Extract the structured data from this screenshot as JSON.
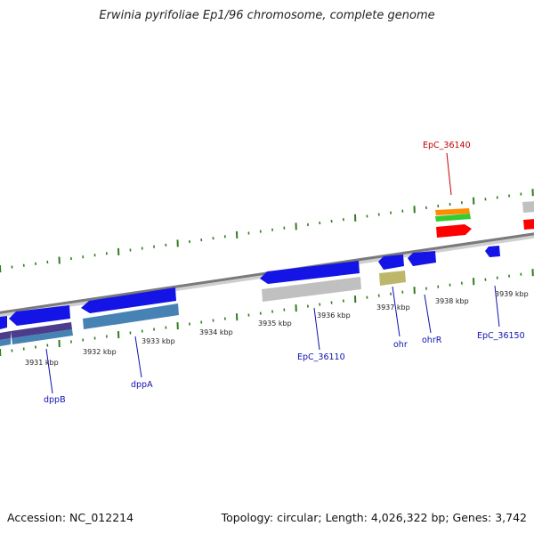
{
  "title": "Erwinia pyrifoliae Ep1/96 chromosome, complete genome",
  "accession_label": "Accession: NC_012214",
  "summary_label": "Topology: circular; Length: 4,026,322 bp; Genes: 3,742",
  "ruler_labels": [
    "3931 kbp",
    "3932 kbp",
    "3933 kbp",
    "3934 kbp",
    "3935 kbp",
    "3936 kbp",
    "3937 kbp",
    "3938 kbp",
    "3939 kbp"
  ],
  "gene_labels": {
    "dppB": "dppB",
    "dppA": "dppA",
    "EpC_36110": "EpC_36110",
    "ohr": "ohr",
    "ohrR": "ohrR",
    "EpC_36150": "EpC_36150",
    "EpC_36140": "EpC_36140"
  },
  "colors": {
    "backbone": "#8a8a8a",
    "tick": "#2f7d1e",
    "cds_blue": "#1414e6",
    "cds_steel": "#4682b4",
    "cds_purple": "#4b3c8c",
    "cds_gray": "#c0c0c0",
    "cds_khaki": "#bdb76b",
    "cds_orange": "#ff8c00",
    "cds_green": "#32cd32",
    "cds_red": "#ff0000",
    "label_blue": "#1010b0",
    "label_red": "#c00000"
  }
}
